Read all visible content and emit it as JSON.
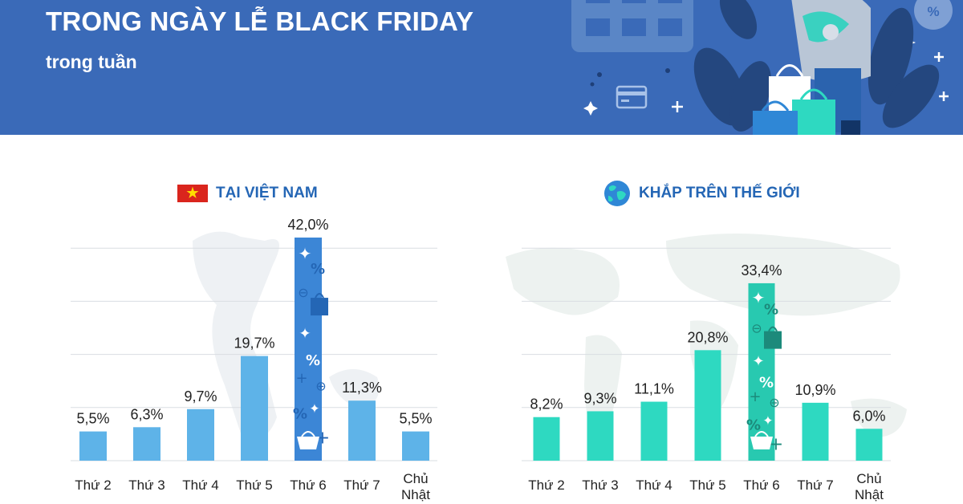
{
  "header": {
    "title": "TRONG NGÀY LỄ BLACK FRIDAY",
    "subtitle": "trong tuần"
  },
  "colors": {
    "header_bg": "#3a6ab8",
    "vn_bar": "#5eb3e8",
    "vn_highlight": "#3c86d6",
    "world_bar": "#2ed9c1",
    "world_highlight": "#28c9b0",
    "heading": "#2466b5"
  },
  "chart_data": [
    {
      "type": "bar",
      "heading": "TẠI VIỆT NAM",
      "icon": "vietnam-flag-icon",
      "categories": [
        "Thứ 2",
        "Thứ 3",
        "Thứ 4",
        "Thứ 5",
        "Thứ 6",
        "Thứ 7",
        "Chủ Nhật"
      ],
      "values": [
        5.5,
        6.3,
        9.7,
        19.7,
        42.0,
        11.3,
        5.5
      ],
      "value_labels": [
        "5,5%",
        "6,3%",
        "9,7%",
        "19,7%",
        "42,0%",
        "11,3%",
        "5,5%"
      ],
      "highlight_index": 4,
      "grid": true,
      "ylim": [
        0,
        42
      ]
    },
    {
      "type": "bar",
      "heading": "KHẮP TRÊN THẾ GIỚI",
      "icon": "globe-icon",
      "categories": [
        "Thứ 2",
        "Thứ 3",
        "Thứ 4",
        "Thứ 5",
        "Thứ 6",
        "Thứ 7",
        "Chủ Nhật"
      ],
      "values": [
        8.2,
        9.3,
        11.1,
        20.8,
        33.4,
        10.9,
        6.0
      ],
      "value_labels": [
        "8,2%",
        "9,3%",
        "11,1%",
        "20,8%",
        "33,4%",
        "10,9%",
        "6,0%"
      ],
      "highlight_index": 4,
      "grid": true,
      "ylim": [
        0,
        42
      ]
    }
  ]
}
